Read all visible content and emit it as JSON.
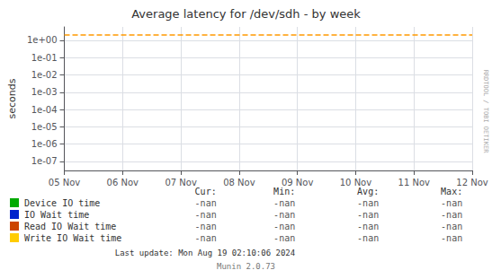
{
  "chart_data": {
    "type": "line",
    "title": "Average latency for /dev/sdh - by week",
    "y_label": "seconds",
    "categories": [
      "05 Nov",
      "06 Nov",
      "07 Nov",
      "08 Nov",
      "09 Nov",
      "10 Nov",
      "11 Nov",
      "12 Nov"
    ],
    "series": [
      {
        "name": "Device IO time",
        "color": "#00aa00",
        "values": [
          null,
          null,
          null,
          null,
          null,
          null,
          null,
          null
        ],
        "legend_values": [
          "-nan",
          "-nan",
          "-nan",
          "-nan"
        ]
      },
      {
        "name": "IO Wait time",
        "color": "#0022cc",
        "values": [
          null,
          null,
          null,
          null,
          null,
          null,
          null,
          null
        ],
        "legend_values": [
          "-nan",
          "-nan",
          "-nan",
          "-nan"
        ]
      },
      {
        "name": "Read IO Wait time",
        "color": "#cc4400",
        "values": [
          null,
          null,
          null,
          null,
          null,
          null,
          null,
          null
        ],
        "legend_values": [
          "-nan",
          "-nan",
          "-nan",
          "-nan"
        ]
      },
      {
        "name": "Write IO Wait time",
        "color": "#ffcc00",
        "values": [
          null,
          null,
          null,
          null,
          null,
          null,
          null,
          null
        ],
        "legend_values": [
          "-nan",
          "-nan",
          "-nan",
          "-nan"
        ]
      }
    ],
    "legend_columns": [
      "Cur:",
      "Min:",
      "Avg:",
      "Max:"
    ],
    "reference_lines": [
      {
        "value": 2.0,
        "color": "#ff9900",
        "line_style": "dashed"
      }
    ],
    "annotations": [
      "Last update: Mon Aug 19 02:10:06 2024",
      "Munin 2.0.73",
      "RRDTOOL / TOBI OETIKER"
    ],
    "log": "y",
    "ylim": [
      3e-08,
      6.0
    ],
    "yticks": [
      {
        "value": 1e-07,
        "label": "1e-07"
      },
      {
        "value": 1e-06,
        "label": "1e-06"
      },
      {
        "value": 1e-05,
        "label": "1e-05"
      },
      {
        "value": 0.0001,
        "label": "1e-04"
      },
      {
        "value": 0.001,
        "label": "1e-03"
      },
      {
        "value": 0.01,
        "label": "1e-02"
      },
      {
        "value": 0.1,
        "label": "1e-01"
      },
      {
        "value": 1,
        "label": "1e+00"
      }
    ],
    "grid": true,
    "legend": "bottom"
  }
}
